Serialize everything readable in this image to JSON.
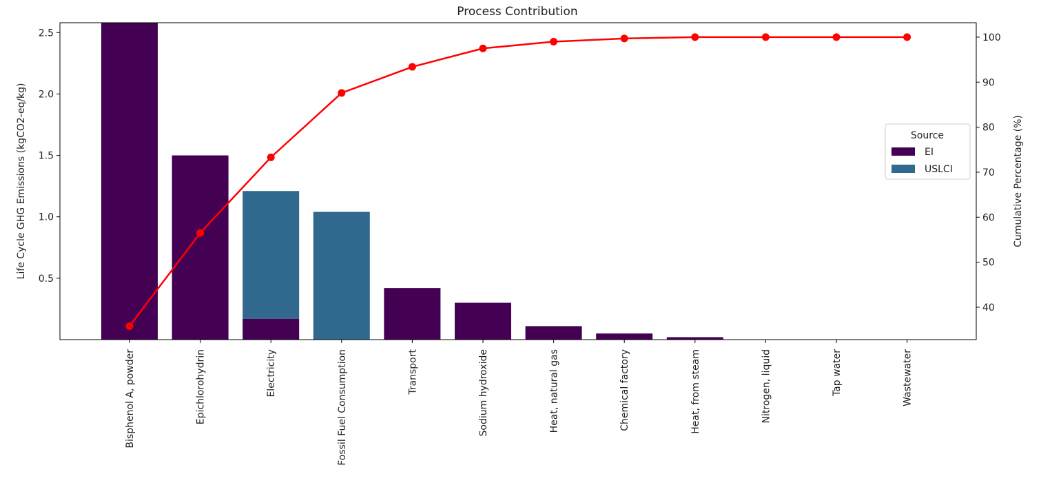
{
  "chart_data": {
    "type": "bar",
    "title": "Process Contribution",
    "categories": [
      "Bisphenol A, powder",
      "Epichlorohydrin",
      "Electricity",
      "Fossil Fuel Consumption",
      "Transport",
      "Sodium hydroxide",
      "Heat, natural gas",
      "Chemical factory",
      "Heat, from steam",
      "Nitrogen, liquid",
      "Tap water",
      "Wastewater"
    ],
    "stacked": true,
    "series": [
      {
        "name": "EI",
        "color": "#440154",
        "values": [
          2.58,
          1.5,
          0.17,
          0.0,
          0.42,
          0.3,
          0.11,
          0.05,
          0.02,
          0.0,
          0.0,
          0.0
        ]
      },
      {
        "name": "USLCI",
        "color": "#31688e",
        "values": [
          0.0,
          0.0,
          1.04,
          1.04,
          0.0,
          0.0,
          0.0,
          0.0,
          0.0,
          0.0,
          0.0,
          0.0
        ]
      }
    ],
    "cumulative": {
      "color": "#ff0000",
      "values": [
        35.8,
        56.5,
        73.3,
        87.6,
        93.4,
        97.5,
        99.0,
        99.7,
        100.0,
        100.0,
        100.0,
        100.0
      ]
    },
    "ylabel": "Life Cycle GHG Emissions (kgCO2-eq/kg)",
    "ylim": [
      0,
      2.58
    ],
    "yticks": [
      "0.5",
      "1.0",
      "1.5",
      "2.0",
      "2.5"
    ],
    "y2label": "Cumulative Percentage (%)",
    "y2lim": [
      32.8,
      103.2
    ],
    "y2ticks": [
      "40",
      "50",
      "60",
      "70",
      "80",
      "90",
      "100"
    ],
    "legend": {
      "title": "Source",
      "placement": "right",
      "entries": [
        "EI",
        "USLCI"
      ]
    },
    "grid": false
  }
}
